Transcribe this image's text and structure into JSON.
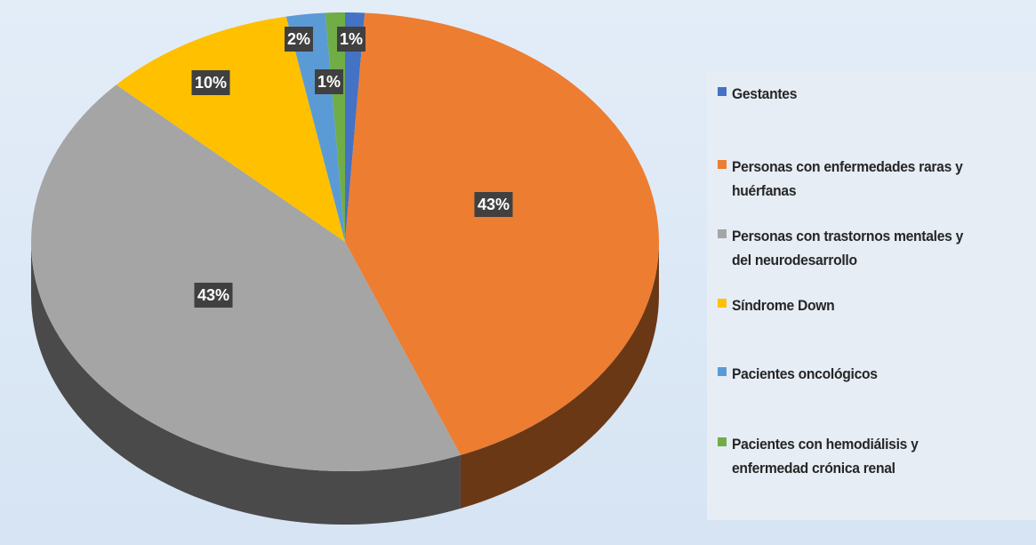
{
  "chart_data": {
    "type": "pie",
    "series": [
      {
        "name": "Gestantes",
        "color": "#4472c4",
        "values": [
          1
        ],
        "value_labels": [
          "1%"
        ]
      },
      {
        "name": "Personas con enfermedades raras y huérfanas",
        "color": "#ed7d31",
        "values": [
          43
        ],
        "value_labels": [
          "43%"
        ]
      },
      {
        "name": "Personas con trastornos mentales y del neurodesarrollo",
        "color": "#a5a5a5",
        "values": [
          43
        ],
        "value_labels": [
          "43%"
        ]
      },
      {
        "name": "Síndrome Down",
        "color": "#ffc000",
        "values": [
          10
        ],
        "value_labels": [
          "10%"
        ]
      },
      {
        "name": "Pacientes oncológicos",
        "color": "#5b9bd5",
        "values": [
          2
        ],
        "value_labels": [
          "2%"
        ]
      },
      {
        "name": "Pacientes con hemodiálisis y enfermedad crónica renal",
        "color": "#70ad47",
        "values": [
          1
        ],
        "value_labels": [
          "1%"
        ]
      }
    ]
  }
}
